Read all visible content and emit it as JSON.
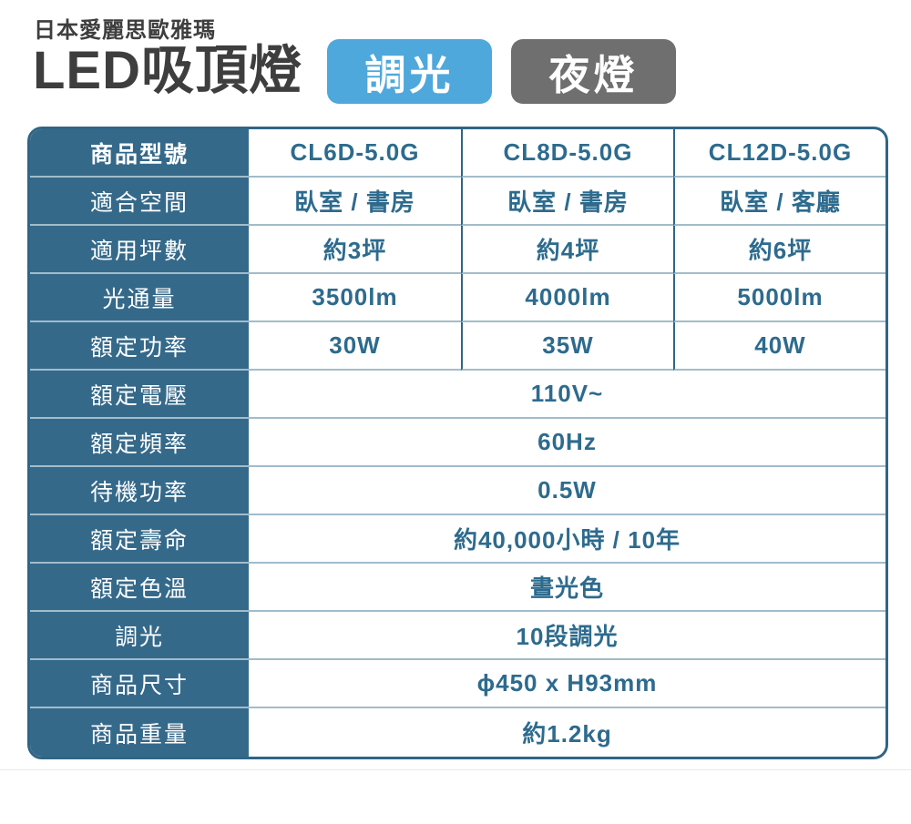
{
  "theme": {
    "table_border": "#2F6585",
    "column_bg": "#35698A",
    "row_separator": "#A2BCCB",
    "value_text": "#2D6B8E",
    "label_text": "#FFFFFF",
    "title_text": "#3E3E3E",
    "badge_dimming_bg": "#4FA8DB",
    "badge_night_bg": "#6F6F6F",
    "bottom_divider": "#E8E8E8"
  },
  "header": {
    "brand": "日本愛麗思歐雅瑪",
    "title": "LED吸頂燈",
    "badges": [
      {
        "id": "dimming",
        "label": "調光"
      },
      {
        "id": "night-light",
        "label": "夜燈"
      }
    ]
  },
  "spec_table": {
    "model_row": {
      "label": "商品型號",
      "models": [
        "CL6D-5.0G",
        "CL8D-5.0G",
        "CL12D-5.0G"
      ]
    },
    "rows": [
      {
        "label": "適合空間",
        "values": [
          "臥室 / 書房",
          "臥室 / 書房",
          "臥室 / 客廳"
        ]
      },
      {
        "label": "適用坪數",
        "values": [
          "約3坪",
          "約4坪",
          "約6坪"
        ]
      },
      {
        "label": "光通量",
        "values": [
          "3500lm",
          "4000lm",
          "5000lm"
        ]
      },
      {
        "label": "額定功率",
        "values": [
          "30W",
          "35W",
          "40W"
        ]
      },
      {
        "label": "額定電壓",
        "span": "110V~"
      },
      {
        "label": "額定頻率",
        "span": "60Hz"
      },
      {
        "label": "待機功率",
        "span": "0.5W"
      },
      {
        "label": "額定壽命",
        "span": "約40,000小時 / 10年"
      },
      {
        "label": "額定色溫",
        "span": "晝光色"
      },
      {
        "label": "調光",
        "span": "10段調光"
      },
      {
        "label": "商品尺寸",
        "span": "ϕ450 x H93mm"
      },
      {
        "label": "商品重量",
        "span": "約1.2kg"
      }
    ]
  }
}
